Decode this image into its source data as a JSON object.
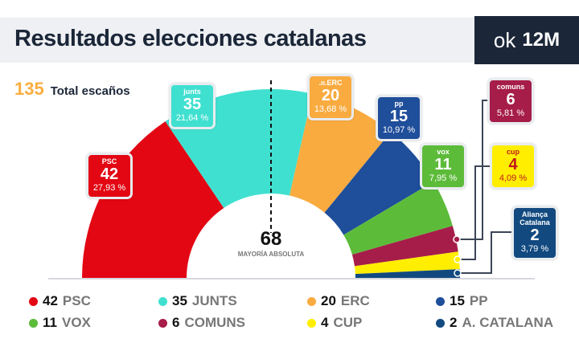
{
  "header": {
    "title": "Resultados elecciones catalanas",
    "logo_ok": "ok",
    "logo_date": "12M"
  },
  "total": {
    "value": "135",
    "label": "Total escaños"
  },
  "majority": {
    "value": "68",
    "label": "MAYORÍA ABSOLUTA"
  },
  "chart_data": {
    "type": "pie",
    "subtype": "parliament-semicircle",
    "title": "Resultados elecciones catalanas",
    "total_seats": 135,
    "majority": 68,
    "parties": [
      {
        "name": "PSC",
        "badge": "PSC",
        "seats": 42,
        "seats_label": "42",
        "pct": "27,93 %",
        "color": "#e30613",
        "text": "#fff"
      },
      {
        "name": "JUNTS",
        "badge": "junts",
        "seats": 35,
        "seats_label": "35",
        "pct": "21,64 %",
        "color": "#40e0d0",
        "text": "#fff"
      },
      {
        "name": "ERC",
        "badge": ".ıı.ERC",
        "seats": 20,
        "seats_label": "20",
        "pct": "13,68 %",
        "color": "#f9ab40",
        "text": "#fff"
      },
      {
        "name": "PP",
        "badge": "pp",
        "seats": 15,
        "seats_label": "15",
        "pct": "10,97 %",
        "color": "#1f4e9a",
        "text": "#fff"
      },
      {
        "name": "VOX",
        "badge": "vox",
        "seats": 11,
        "seats_label": "11",
        "pct": "7,95 %",
        "color": "#5dbb3a",
        "text": "#fff"
      },
      {
        "name": "COMUNS",
        "badge": "comuns",
        "seats": 6,
        "seats_label": "6",
        "pct": "5,81 %",
        "color": "#a61d4a",
        "text": "#fff"
      },
      {
        "name": "CUP",
        "badge": "cup",
        "seats": 4,
        "seats_label": "4",
        "pct": "4,09 %",
        "color": "#ffee00",
        "text": "#c0191d"
      },
      {
        "name": "A. CATALANA",
        "badge": "Aliança Catalana",
        "seats": 2,
        "seats_label": "2",
        "pct": "3,79 %",
        "color": "#124a80",
        "text": "#fff"
      }
    ]
  }
}
